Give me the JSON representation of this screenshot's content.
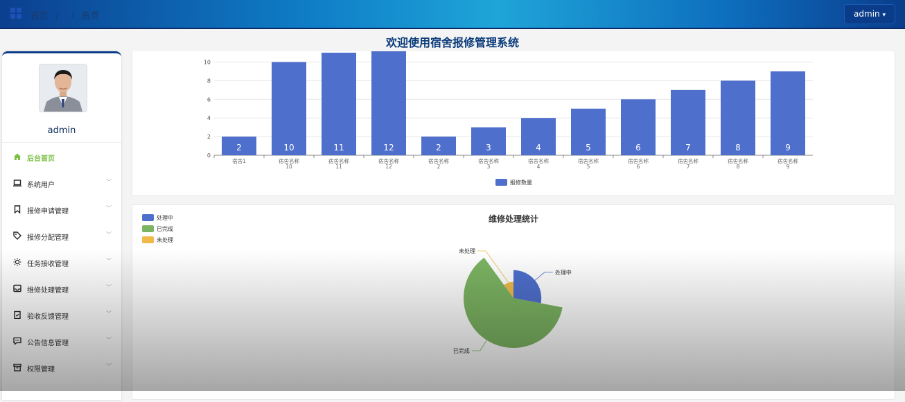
{
  "header": {
    "breadcrumb": [
      "首页",
      "/",
      "/",
      "首页"
    ],
    "user_button": "admin"
  },
  "page_title": "欢迎使用宿舍报修管理系统",
  "sidebar": {
    "username": "admin",
    "items": [
      {
        "label": "后台首页",
        "icon": "home-icon",
        "active": true
      },
      {
        "label": "系统用户",
        "icon": "laptop-icon"
      },
      {
        "label": "报修申请管理",
        "icon": "bookmark-icon"
      },
      {
        "label": "报修分配管理",
        "icon": "tag-icon"
      },
      {
        "label": "任务接收管理",
        "icon": "sun-icon"
      },
      {
        "label": "维修处理管理",
        "icon": "inbox-icon"
      },
      {
        "label": "验收反馈管理",
        "icon": "clipboard-check-icon"
      },
      {
        "label": "公告信息管理",
        "icon": "message-icon"
      },
      {
        "label": "权限管理",
        "icon": "archive-icon"
      }
    ]
  },
  "colors": {
    "bar": "#4e6fcc",
    "processing": "#4e6fcc",
    "done": "#7cb462",
    "pending": "#f0b94a",
    "accent": "#7bc043"
  },
  "chart_data": [
    {
      "type": "bar",
      "categories": [
        "宿舍1",
        "宿舍名称\n10",
        "宿舍名称\n11",
        "宿舍名称\n12",
        "宿舍名称\n2",
        "宿舍名称\n3",
        "宿舍名称\n4",
        "宿舍名称\n5",
        "宿舍名称\n6",
        "宿舍名称\n7",
        "宿舍名称\n8",
        "宿舍名称\n9"
      ],
      "series": [
        {
          "name": "报修数量",
          "values": [
            2,
            10,
            11,
            12,
            2,
            3,
            4,
            5,
            6,
            7,
            8,
            9
          ]
        }
      ],
      "yticks": [
        0,
        2,
        4,
        6,
        8,
        10
      ],
      "ylim": [
        0,
        11.4
      ],
      "grid": true,
      "legend": "bottom-center"
    },
    {
      "type": "pie",
      "title": "维修处理统计",
      "labels": [
        "处理中",
        "已完成",
        "未处理"
      ],
      "values": [
        28,
        62,
        10
      ],
      "legend": "top-left",
      "rose": true
    }
  ]
}
